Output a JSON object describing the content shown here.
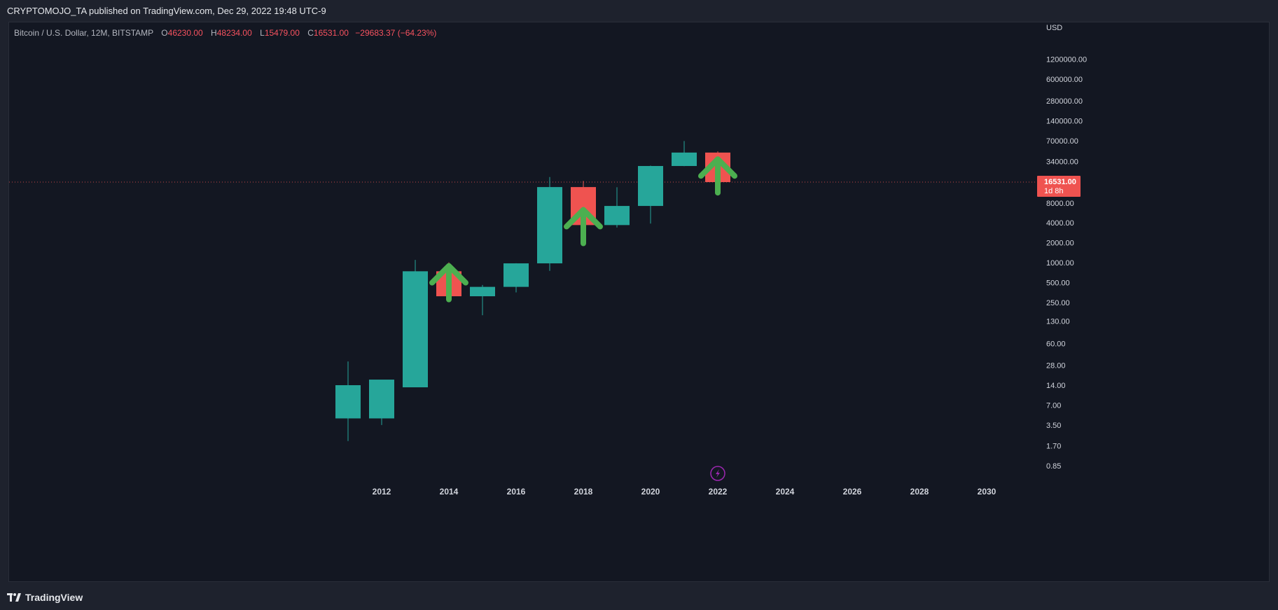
{
  "publish_bar": {
    "text": "CRYPTOMOJO_TA published on TradingView.com, Dec 29, 2022 19:48 UTC-9"
  },
  "legend": {
    "symbol": "Bitcoin / U.S. Dollar, 12M, BITSTAMP",
    "o_label": "O",
    "o_value": "46230.00",
    "h_label": "H",
    "h_value": "48234.00",
    "l_label": "L",
    "l_value": "15479.00",
    "c_label": "C",
    "c_value": "16531.00",
    "change": "−29683.37 (−64.23%)"
  },
  "footer": {
    "brand": "TradingView"
  },
  "colors": {
    "background": "#131722",
    "up": "#26a69a",
    "down": "#ef5350",
    "arrow": "#4caf50",
    "axis_text": "#d1d4dc",
    "price_line": "#ef5350",
    "bolt": "#9c27b0"
  },
  "chart_data": {
    "type": "candlestick",
    "title": "Bitcoin / U.S. Dollar, 12M, BITSTAMP",
    "y_scale": "log",
    "y_unit": "USD",
    "y_ticks": [
      "1200000.00",
      "600000.00",
      "280000.00",
      "140000.00",
      "70000.00",
      "34000.00",
      "8000.00",
      "4000.00",
      "2000.00",
      "1000.00",
      "500.00",
      "250.00",
      "130.00",
      "60.00",
      "28.00",
      "14.00",
      "7.00",
      "3.50",
      "1.70",
      "0.85"
    ],
    "x_ticks": [
      "2012",
      "2014",
      "2016",
      "2018",
      "2020",
      "2022",
      "2024",
      "2026",
      "2028",
      "2030"
    ],
    "candles": [
      {
        "year": 2011,
        "open": 4.4,
        "high": 32,
        "low": 2.0,
        "close": 14
      },
      {
        "year": 2012,
        "open": 4.4,
        "high": 16,
        "low": 3.5,
        "close": 17
      },
      {
        "year": 2013,
        "open": 13,
        "high": 1100,
        "low": 13,
        "close": 740
      },
      {
        "year": 2014,
        "open": 740,
        "high": 1010,
        "low": 280,
        "close": 310
      },
      {
        "year": 2015,
        "open": 310,
        "high": 460,
        "low": 160,
        "close": 430
      },
      {
        "year": 2016,
        "open": 430,
        "high": 980,
        "low": 355,
        "close": 975
      },
      {
        "year": 2017,
        "open": 975,
        "high": 19700,
        "low": 750,
        "close": 13900
      },
      {
        "year": 2018,
        "open": 13900,
        "high": 17200,
        "low": 3200,
        "close": 3700
      },
      {
        "year": 2019,
        "open": 3700,
        "high": 13800,
        "low": 3400,
        "close": 7200
      },
      {
        "year": 2020,
        "open": 7200,
        "high": 29300,
        "low": 3900,
        "close": 28950
      },
      {
        "year": 2021,
        "open": 28950,
        "high": 69000,
        "low": 28800,
        "close": 46230
      },
      {
        "year": 2022,
        "open": 46230,
        "high": 48234,
        "low": 15479,
        "close": 16531
      }
    ],
    "annotations": [
      {
        "type": "arrow-up",
        "year": 2014,
        "price": 170
      },
      {
        "type": "arrow-up",
        "year": 2018,
        "price": 1200
      },
      {
        "type": "arrow-up",
        "year": 2022,
        "price": 7000
      }
    ],
    "current_price": {
      "value": "16531.00",
      "countdown": "1d 8h"
    },
    "grid": false
  }
}
